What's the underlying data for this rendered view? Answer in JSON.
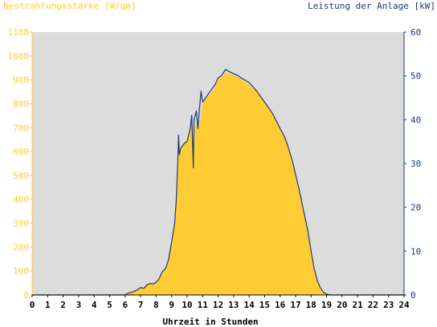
{
  "colors": {
    "background": "#ffffff",
    "plot_background": "#dcdcdc",
    "left_axis": "#ffcc33",
    "right_axis": "#1a3a7a",
    "area_fill": "#ffcc33",
    "line": "#1a3a7a"
  },
  "chart_data": {
    "type": "area",
    "left_axis_title": "Bestrahlungsstärke [W/qm]",
    "right_axis_title": "Leistung der Anlage [kW]",
    "xlabel": "Uhrzeit in Stunden",
    "xlim": [
      0,
      24
    ],
    "ylim_left": [
      0,
      1100
    ],
    "ylim_right": [
      0,
      60
    ],
    "x_ticks": [
      "0",
      "1",
      "2",
      "3",
      "4",
      "5",
      "6",
      "7",
      "8",
      "9",
      "10",
      "11",
      "12",
      "13",
      "14",
      "15",
      "16",
      "17",
      "18",
      "19",
      "20",
      "21",
      "22",
      "23",
      "24"
    ],
    "y_left_ticks": [
      "0",
      "100",
      "200",
      "300",
      "400",
      "500",
      "600",
      "700",
      "800",
      "900",
      "1000",
      "1100"
    ],
    "y_right_ticks": [
      "0",
      "10",
      "20",
      "30",
      "40",
      "50",
      "60"
    ],
    "series": [
      {
        "name": "Bestrahlungsstärke",
        "axis": "left",
        "style": "area",
        "points": [
          [
            0,
            0
          ],
          [
            6.0,
            0
          ],
          [
            6.2,
            10
          ],
          [
            6.5,
            15
          ],
          [
            6.8,
            25
          ],
          [
            7.0,
            35
          ],
          [
            7.2,
            30
          ],
          [
            7.4,
            45
          ],
          [
            7.6,
            50
          ],
          [
            7.8,
            48
          ],
          [
            8.0,
            55
          ],
          [
            8.2,
            70
          ],
          [
            8.4,
            100
          ],
          [
            8.6,
            110
          ],
          [
            8.8,
            150
          ],
          [
            9.0,
            220
          ],
          [
            9.2,
            300
          ],
          [
            9.3,
            400
          ],
          [
            9.4,
            550
          ],
          [
            9.5,
            650
          ],
          [
            9.6,
            600
          ],
          [
            9.8,
            640
          ],
          [
            10.0,
            650
          ],
          [
            10.2,
            700
          ],
          [
            10.3,
            720
          ],
          [
            10.4,
            600
          ],
          [
            10.5,
            700
          ],
          [
            10.7,
            730
          ],
          [
            10.8,
            700
          ],
          [
            11.0,
            800
          ],
          [
            11.2,
            820
          ],
          [
            11.5,
            840
          ],
          [
            11.8,
            870
          ],
          [
            12.0,
            900
          ],
          [
            12.2,
            910
          ],
          [
            12.5,
            930
          ],
          [
            12.7,
            925
          ],
          [
            13.0,
            920
          ],
          [
            13.3,
            910
          ],
          [
            13.5,
            905
          ],
          [
            14.0,
            880
          ],
          [
            14.5,
            850
          ],
          [
            15.0,
            810
          ],
          [
            15.5,
            760
          ],
          [
            16.0,
            700
          ],
          [
            16.3,
            660
          ],
          [
            16.5,
            620
          ],
          [
            16.8,
            560
          ],
          [
            17.0,
            500
          ],
          [
            17.3,
            420
          ],
          [
            17.5,
            350
          ],
          [
            17.8,
            260
          ],
          [
            18.0,
            180
          ],
          [
            18.2,
            110
          ],
          [
            18.4,
            60
          ],
          [
            18.6,
            30
          ],
          [
            18.8,
            12
          ],
          [
            19.0,
            4
          ],
          [
            19.2,
            0
          ],
          [
            24,
            0
          ]
        ]
      },
      {
        "name": "Leistung der Anlage",
        "axis": "right",
        "style": "line",
        "points": [
          [
            0,
            0
          ],
          [
            6.0,
            0
          ],
          [
            6.2,
            0.4
          ],
          [
            6.5,
            0.7
          ],
          [
            6.8,
            1.2
          ],
          [
            7.0,
            1.7
          ],
          [
            7.2,
            1.5
          ],
          [
            7.4,
            2.3
          ],
          [
            7.6,
            2.6
          ],
          [
            7.8,
            2.5
          ],
          [
            8.0,
            2.9
          ],
          [
            8.2,
            3.7
          ],
          [
            8.4,
            5.3
          ],
          [
            8.6,
            6.0
          ],
          [
            8.8,
            8.0
          ],
          [
            9.0,
            12.0
          ],
          [
            9.2,
            16.5
          ],
          [
            9.3,
            21.5
          ],
          [
            9.4,
            30.5
          ],
          [
            9.45,
            36.5
          ],
          [
            9.5,
            32.0
          ],
          [
            9.6,
            33.5
          ],
          [
            9.8,
            34.5
          ],
          [
            10.0,
            35.0
          ],
          [
            10.2,
            38.0
          ],
          [
            10.3,
            41.0
          ],
          [
            10.4,
            29.0
          ],
          [
            10.45,
            40.0
          ],
          [
            10.6,
            42.0
          ],
          [
            10.7,
            38.0
          ],
          [
            10.8,
            42.5
          ],
          [
            10.9,
            46.5
          ],
          [
            11.0,
            44.0
          ],
          [
            11.2,
            45.0
          ],
          [
            11.5,
            46.5
          ],
          [
            11.8,
            48.0
          ],
          [
            12.0,
            49.5
          ],
          [
            12.2,
            50.0
          ],
          [
            12.5,
            51.5
          ],
          [
            12.7,
            51.0
          ],
          [
            13.0,
            50.5
          ],
          [
            13.3,
            50.0
          ],
          [
            13.5,
            49.5
          ],
          [
            14.0,
            48.5
          ],
          [
            14.5,
            46.5
          ],
          [
            15.0,
            44.0
          ],
          [
            15.5,
            41.5
          ],
          [
            16.0,
            38.0
          ],
          [
            16.3,
            36.0
          ],
          [
            16.5,
            34.0
          ],
          [
            16.8,
            30.5
          ],
          [
            17.0,
            27.5
          ],
          [
            17.3,
            23.0
          ],
          [
            17.5,
            19.5
          ],
          [
            17.8,
            14.5
          ],
          [
            18.0,
            10.0
          ],
          [
            18.2,
            6.0
          ],
          [
            18.4,
            3.3
          ],
          [
            18.6,
            1.6
          ],
          [
            18.8,
            0.6
          ],
          [
            19.0,
            0.2
          ],
          [
            19.2,
            0
          ],
          [
            24,
            0
          ]
        ]
      }
    ]
  }
}
